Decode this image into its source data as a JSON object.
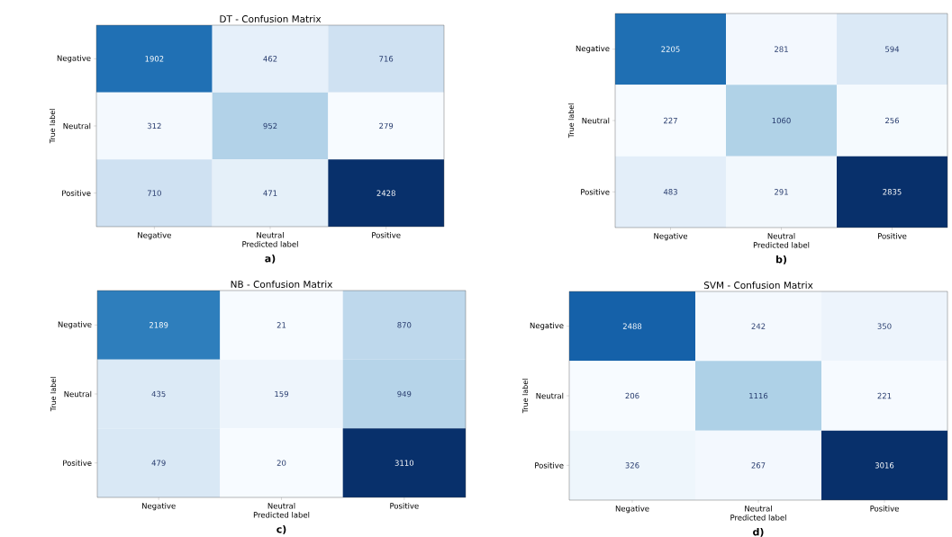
{
  "chart_data": [
    {
      "type": "heatmap",
      "title": "DT - Confusion Matrix",
      "xlabel": "Predicted label",
      "ylabel": "True label",
      "categories": [
        "Negative",
        "Neutral",
        "Positive"
      ],
      "y_categories": [
        "Negative",
        "Neutral",
        "Positive"
      ],
      "cells": [
        [
          1902,
          462,
          716
        ],
        [
          312,
          952,
          279
        ],
        [
          710,
          471,
          2428
        ]
      ],
      "data_labels": true,
      "annotations": [
        "a)"
      ]
    },
    {
      "type": "heatmap",
      "xlabel": "Predicted label",
      "ylabel": "True label",
      "categories": [
        "Negative",
        "Neutral",
        "Positive"
      ],
      "y_categories": [
        "Negative",
        "Neutral",
        "Positive"
      ],
      "cells": [
        [
          2205,
          281,
          594
        ],
        [
          227,
          1060,
          256
        ],
        [
          483,
          291,
          2835
        ]
      ],
      "data_labels": true,
      "annotations": [
        "b)"
      ]
    },
    {
      "type": "heatmap",
      "title": "NB - Confusion Matrix",
      "xlabel": "Predicted label",
      "ylabel": "True label",
      "categories": [
        "Negative",
        "Neutral",
        "Positive"
      ],
      "y_categories": [
        "Negative",
        "Neutral",
        "Positive"
      ],
      "cells": [
        [
          2189,
          21,
          870
        ],
        [
          435,
          159,
          949
        ],
        [
          479,
          20,
          3110
        ]
      ],
      "data_labels": true,
      "annotations": [
        "c)"
      ]
    },
    {
      "type": "heatmap",
      "title": "SVM - Confusion Matrix",
      "xlabel": "Predicted label",
      "ylabel": "True label",
      "categories": [
        "Negative",
        "Neutral",
        "Positive"
      ],
      "y_categories": [
        "Negative",
        "Neutral",
        "Positive"
      ],
      "cells": [
        [
          2488,
          242,
          350
        ],
        [
          206,
          1116,
          221
        ],
        [
          326,
          267,
          3016
        ]
      ],
      "data_labels": true,
      "annotations": [
        "d)"
      ]
    }
  ]
}
